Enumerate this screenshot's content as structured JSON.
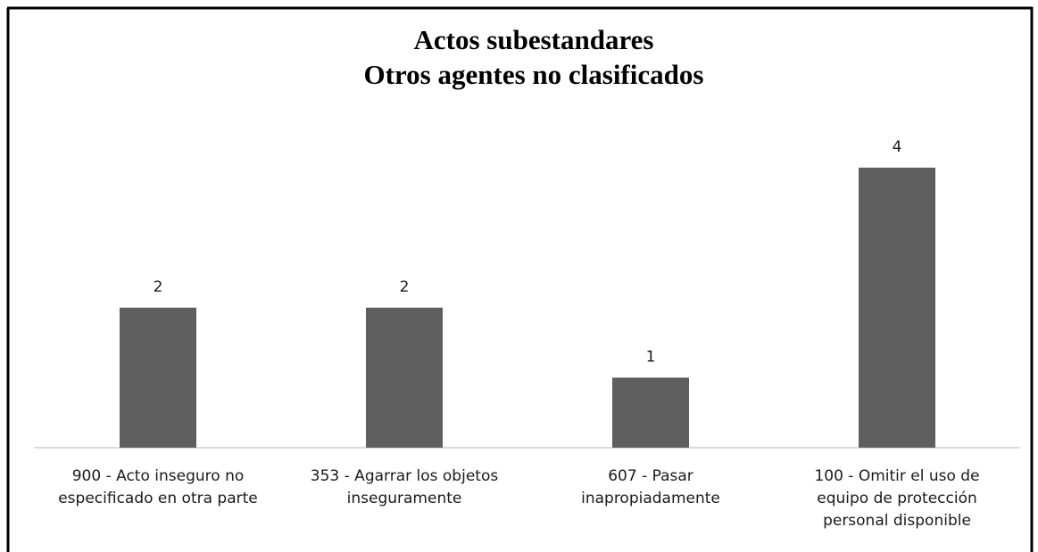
{
  "chart_data": {
    "type": "bar",
    "title": "Actos subestandares",
    "subtitle": "Otros agentes no clasificados",
    "categories": [
      [
        "900 - Acto inseguro no",
        "especificado en otra parte"
      ],
      [
        "353 - Agarrar los objetos",
        "inseguramente"
      ],
      [
        "607 - Pasar",
        "inapropiadamente"
      ],
      [
        "100 - Omitir el uso de",
        "equipo de protección",
        "personal disponible"
      ]
    ],
    "values": [
      2,
      2,
      1,
      4
    ],
    "color": "#5f5f5f",
    "grid": false
  }
}
